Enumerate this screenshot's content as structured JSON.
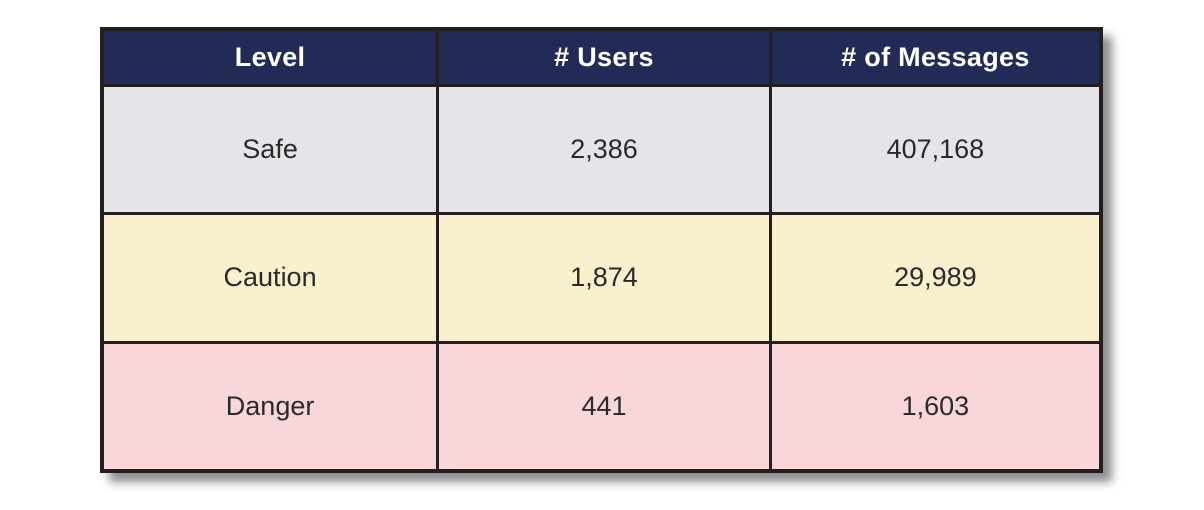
{
  "colors": {
    "header_bg": "#222b55",
    "header_text": "#ffffff",
    "row_safe_bg": "#e3e5e8",
    "row_caution_bg": "#fbf0cd",
    "row_danger_bg": "#f8d6da",
    "border": "#231f20",
    "cell_text": "#2b2a2b"
  },
  "table": {
    "columns": [
      "Level",
      "# Users",
      "# of Messages"
    ],
    "rows": [
      {
        "level": "Safe",
        "users": "2,386",
        "messages": "407,168"
      },
      {
        "level": "Caution",
        "users": "1,874",
        "messages": "29,989"
      },
      {
        "level": "Danger",
        "users": "441",
        "messages": "1,603"
      }
    ]
  },
  "chart_data": {
    "type": "table",
    "columns": [
      "Level",
      "# Users",
      "# of Messages"
    ],
    "rows": [
      [
        "Safe",
        2386,
        407168
      ],
      [
        "Caution",
        1874,
        29989
      ],
      [
        "Danger",
        441,
        1603
      ]
    ]
  }
}
